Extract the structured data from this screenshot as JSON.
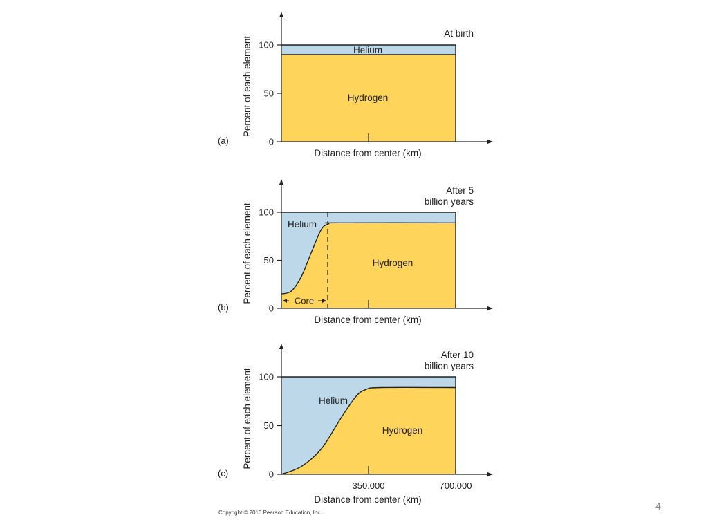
{
  "chart_data": [
    {
      "type": "area",
      "panel_label": "(a)",
      "title": "At birth",
      "xlabel": "Distance from center (km)",
      "ylabel": "Percent of each element",
      "ylim": [
        0,
        100
      ],
      "yticks": [
        "0",
        "50",
        "100"
      ],
      "xticks": [],
      "x": [
        0,
        700000
      ],
      "series": [
        {
          "name": "Hydrogen",
          "values": [
            90,
            90
          ]
        },
        {
          "name": "Helium",
          "values": [
            10,
            10
          ]
        }
      ],
      "annotations": []
    },
    {
      "type": "area",
      "panel_label": "(b)",
      "title": "After 5\nbillion years",
      "xlabel": "Distance from center (km)",
      "ylabel": "Percent of each element",
      "ylim": [
        0,
        100
      ],
      "yticks": [
        "0",
        "50",
        "100"
      ],
      "xticks": [],
      "x": [
        0,
        40000,
        80000,
        120000,
        160000,
        190000,
        220000,
        700000
      ],
      "series": [
        {
          "name": "Hydrogen",
          "values": [
            15,
            18,
            33,
            58,
            82,
            88,
            89,
            89
          ]
        },
        {
          "name": "Helium",
          "values": [
            85,
            82,
            67,
            42,
            18,
            12,
            11,
            11
          ]
        }
      ],
      "annotations": [
        "Core"
      ]
    },
    {
      "type": "area",
      "panel_label": "(c)",
      "title": "After 10\nbillion years",
      "xlabel": "Distance from center (km)",
      "ylabel": "Percent of each element",
      "ylim": [
        0,
        100
      ],
      "yticks": [
        "0",
        "50",
        "100"
      ],
      "xticks": [
        "350,000",
        "700,000"
      ],
      "x": [
        0,
        80000,
        160000,
        240000,
        300000,
        340000,
        400000,
        700000
      ],
      "series": [
        {
          "name": "Hydrogen",
          "values": [
            0,
            8,
            26,
            58,
            80,
            87,
            89,
            89
          ]
        },
        {
          "name": "Helium",
          "values": [
            100,
            92,
            74,
            42,
            20,
            13,
            11,
            11
          ]
        }
      ],
      "annotations": []
    }
  ],
  "colors": {
    "hydrogen": "#fed45a",
    "helium": "#bdd8e8",
    "axis": "#222222"
  },
  "copyright": "Copyright © 2010 Pearson Education, Inc.",
  "slide_number": "4"
}
